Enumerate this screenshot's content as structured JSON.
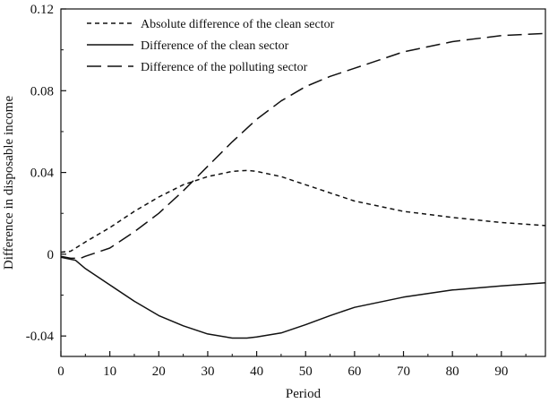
{
  "chart_data": {
    "type": "line",
    "title": "",
    "xlabel": "Period",
    "ylabel": "Difference in disposable income",
    "xlim": [
      0,
      99
    ],
    "ylim": [
      -0.05,
      0.12
    ],
    "xticks": [
      0,
      10,
      20,
      30,
      40,
      50,
      60,
      70,
      80,
      90
    ],
    "xtick_labels": [
      "0",
      "10",
      "20",
      "30",
      "40",
      "50",
      "60",
      "70",
      "80",
      "90"
    ],
    "yticks": [
      -0.04,
      0,
      0.04,
      0.08,
      0.12
    ],
    "ytick_labels": [
      "-0.04",
      "0",
      "0.04",
      "0.08",
      "0.12"
    ],
    "grid": false,
    "legend_position": "top-left",
    "series": [
      {
        "name": "Absolute difference of the clean sector",
        "style": "short-dash",
        "color": "#111111",
        "x": [
          0,
          2,
          3,
          5,
          10,
          15,
          20,
          25,
          30,
          35,
          38,
          40,
          45,
          50,
          55,
          60,
          70,
          80,
          90,
          99
        ],
        "y": [
          0.001,
          0.0015,
          0.003,
          0.006,
          0.013,
          0.021,
          0.028,
          0.034,
          0.038,
          0.0405,
          0.041,
          0.0405,
          0.038,
          0.034,
          0.03,
          0.026,
          0.021,
          0.018,
          0.0155,
          0.014
        ]
      },
      {
        "name": "Difference of the clean sector",
        "style": "solid",
        "color": "#111111",
        "x": [
          0,
          1,
          3,
          5,
          10,
          15,
          20,
          25,
          30,
          35,
          38,
          40,
          45,
          50,
          55,
          60,
          70,
          80,
          90,
          99
        ],
        "y": [
          -0.0015,
          -0.002,
          -0.003,
          -0.007,
          -0.015,
          -0.023,
          -0.03,
          -0.035,
          -0.039,
          -0.041,
          -0.041,
          -0.0405,
          -0.0385,
          -0.0345,
          -0.03,
          -0.026,
          -0.021,
          -0.0175,
          -0.0155,
          -0.014
        ]
      },
      {
        "name": "Difference of the polluting sector",
        "style": "long-dash",
        "color": "#111111",
        "x": [
          0,
          2,
          4,
          5,
          10,
          15,
          20,
          25,
          30,
          35,
          40,
          45,
          50,
          55,
          60,
          65,
          70,
          80,
          90,
          99
        ],
        "y": [
          -0.001,
          -0.002,
          -0.002,
          -0.001,
          0.003,
          0.011,
          0.02,
          0.031,
          0.043,
          0.055,
          0.066,
          0.075,
          0.082,
          0.087,
          0.091,
          0.095,
          0.099,
          0.104,
          0.107,
          0.108
        ]
      }
    ]
  }
}
